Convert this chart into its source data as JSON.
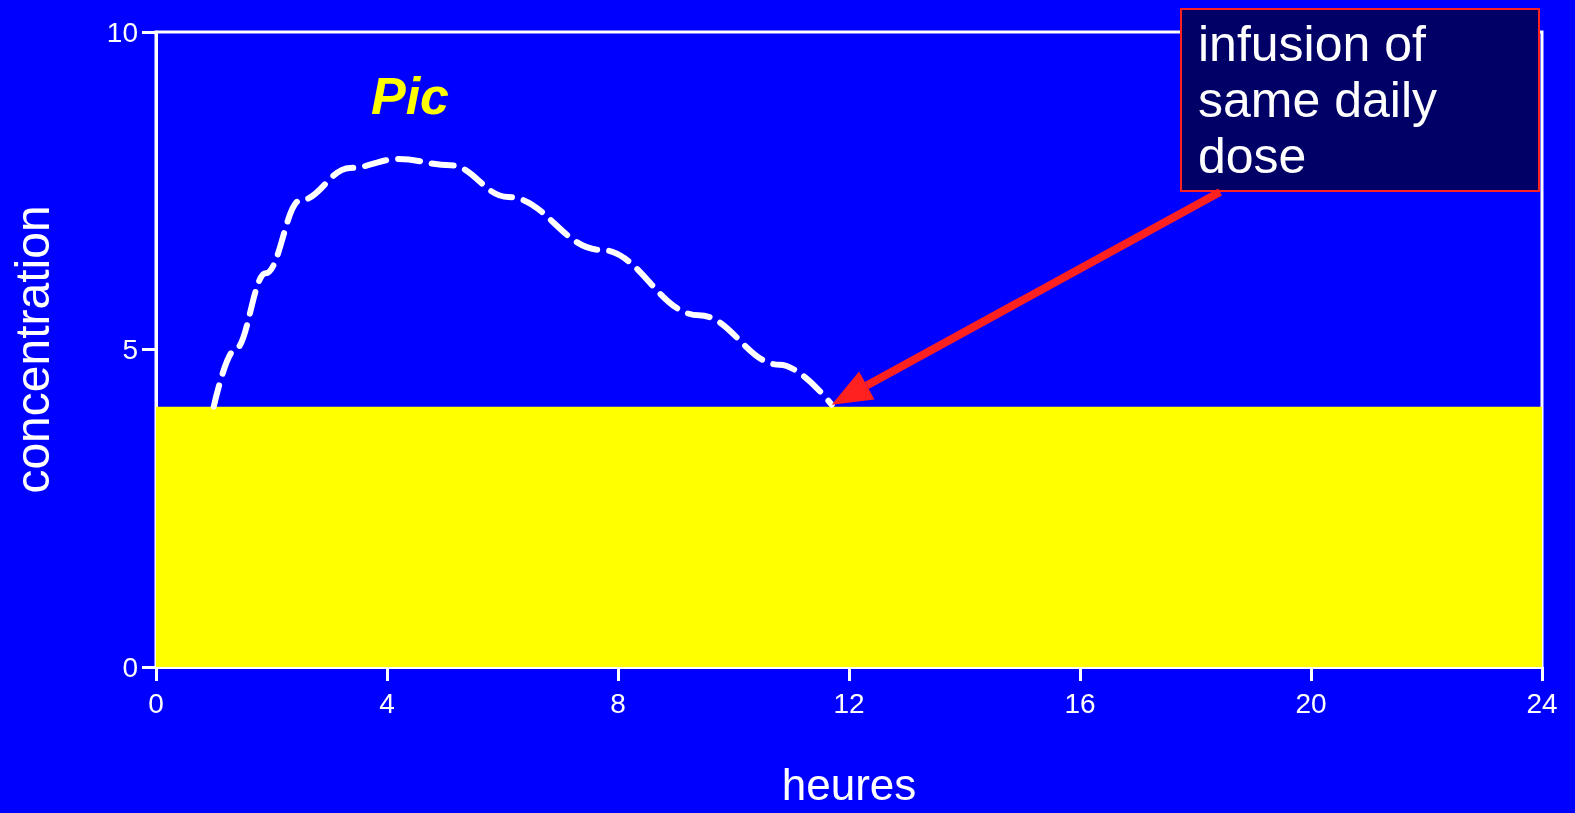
{
  "chart_data": {
    "type": "line",
    "xlabel": "heures",
    "ylabel": "concentration",
    "x": [
      1.0,
      1.37,
      1.9,
      2.5,
      3.36,
      4.2,
      5.1,
      6.1,
      7.7,
      9.4,
      10.8,
      11.7
    ],
    "series": [
      {
        "color": "#ffffff",
        "values": [
          4.1,
          5.0,
          6.2,
          7.35,
          7.86,
          8.0,
          7.9,
          7.4,
          6.57,
          5.54,
          4.76,
          4.13
        ]
      }
    ],
    "xlim": [
      0,
      24
    ],
    "xticks": [
      0,
      4,
      8,
      12,
      16,
      20,
      24
    ],
    "ylim": [
      0,
      10
    ],
    "yticks": [
      0,
      5,
      10
    ],
    "bands": [
      {
        "axis": "y",
        "from": 0,
        "to": 4.1,
        "color": "#ffff00"
      }
    ],
    "annotations": [
      "Pic",
      "infusion of same daily dose"
    ],
    "line_style": "dashed",
    "marker": "none",
    "grid": false
  }
}
